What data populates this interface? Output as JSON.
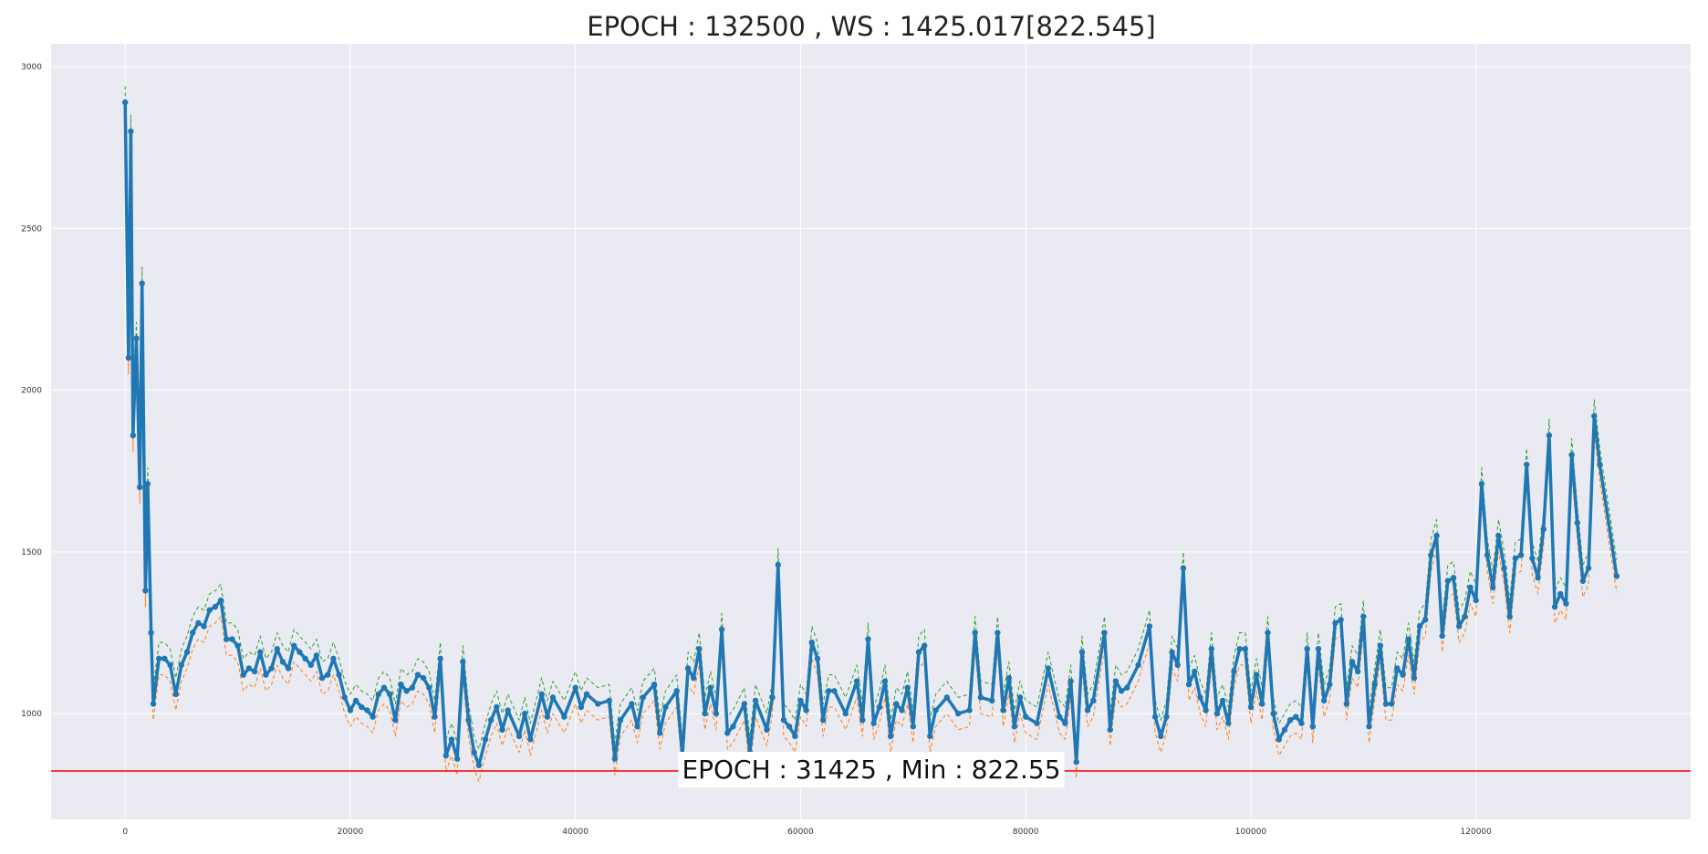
{
  "chart_data": {
    "type": "line",
    "title": "EPOCH : 132500 , WS : 1425.017[822.545]",
    "annotation": "EPOCH : 31425 , Min : 822.55",
    "hline": {
      "value": 822.55,
      "color": "#ff0000"
    },
    "xlim": [
      -6580,
      139070
    ],
    "ylim": [
      673,
      3071
    ],
    "xticks": [
      0,
      20000,
      40000,
      60000,
      80000,
      100000,
      120000
    ],
    "yticks": [
      1000,
      1500,
      2000,
      2500,
      3000
    ],
    "grid": true,
    "x": [
      0,
      300,
      500,
      700,
      1000,
      1300,
      1500,
      1800,
      2000,
      2300,
      2500,
      3000,
      3500,
      4000,
      4500,
      5000,
      5500,
      6000,
      6500,
      7000,
      7500,
      8000,
      8500,
      9000,
      9500,
      10000,
      10500,
      11000,
      11500,
      12000,
      12500,
      13000,
      13500,
      14000,
      14500,
      15000,
      15500,
      16000,
      16500,
      17000,
      17500,
      18000,
      18500,
      19000,
      19500,
      20000,
      20500,
      21000,
      21500,
      22000,
      22500,
      23000,
      23500,
      24000,
      24500,
      25000,
      25500,
      26000,
      26500,
      27000,
      27500,
      28000,
      28500,
      29000,
      29500,
      30000,
      30500,
      31000,
      31425,
      32000,
      32500,
      33000,
      33500,
      34000,
      35000,
      35500,
      36000,
      37000,
      37500,
      38000,
      39000,
      40000,
      40500,
      41000,
      42000,
      43000,
      43500,
      44000,
      45000,
      45500,
      46000,
      47000,
      47500,
      48000,
      49000,
      49500,
      50000,
      50500,
      51000,
      51500,
      52000,
      52500,
      53000,
      53500,
      54000,
      55000,
      55500,
      56000,
      57000,
      57500,
      58000,
      58500,
      59000,
      59500,
      60000,
      60500,
      61000,
      61500,
      62000,
      62500,
      63000,
      64000,
      65000,
      65500,
      66000,
      66500,
      67000,
      67500,
      68000,
      68500,
      69000,
      69500,
      70000,
      70500,
      71000,
      71500,
      72000,
      73000,
      74000,
      75000,
      75500,
      76000,
      77000,
      77500,
      78000,
      78500,
      79000,
      79500,
      80000,
      81000,
      82000,
      83000,
      83500,
      84000,
      84500,
      85000,
      85500,
      86000,
      87000,
      87500,
      88000,
      88500,
      89000,
      90000,
      91000,
      91500,
      92000,
      92500,
      93000,
      93500,
      94000,
      94500,
      95000,
      95500,
      96000,
      96500,
      97000,
      97500,
      98000,
      98500,
      99000,
      99500,
      100000,
      100500,
      101000,
      101500,
      102000,
      102500,
      103000,
      103500,
      104000,
      104500,
      105000,
      105500,
      106000,
      106500,
      107000,
      107500,
      108000,
      108500,
      109000,
      109500,
      110000,
      110500,
      111000,
      111500,
      112000,
      112500,
      113000,
      113500,
      114000,
      114500,
      115000,
      115500,
      116000,
      116500,
      117000,
      117500,
      118000,
      118500,
      119000,
      119500,
      120000,
      120500,
      121000,
      121500,
      122000,
      122500,
      123000,
      123500,
      124000,
      124500,
      125000,
      125500,
      126000,
      126500,
      127000,
      127500,
      128000,
      128500,
      129000,
      129500,
      130000,
      130500,
      131000,
      132500
    ],
    "series": [
      {
        "color": "#2ca02c",
        "linestyle": "dashed",
        "width": 1,
        "values": [
          2940,
          2150,
          2850,
          1910,
          2210,
          1750,
          2380,
          1430,
          1760,
          1300,
          1080,
          1220,
          1220,
          1200,
          1110,
          1200,
          1240,
          1300,
          1330,
          1320,
          1370,
          1380,
          1400,
          1280,
          1280,
          1260,
          1170,
          1190,
          1180,
          1240,
          1170,
          1190,
          1250,
          1210,
          1190,
          1260,
          1240,
          1220,
          1200,
          1230,
          1160,
          1170,
          1220,
          1170,
          1100,
          1060,
          1090,
          1070,
          1060,
          1040,
          1110,
          1130,
          1110,
          1030,
          1140,
          1120,
          1130,
          1170,
          1160,
          1130,
          1040,
          1220,
          920,
          970,
          910,
          1210,
          1030,
          930,
          890,
          970,
          1030,
          1070,
          1000,
          1060,
          980,
          1050,
          970,
          1110,
          1040,
          1100,
          1040,
          1130,
          1070,
          1110,
          1080,
          1090,
          910,
          1030,
          1080,
          1010,
          1100,
          1140,
          990,
          1070,
          1120,
          920,
          1190,
          1160,
          1250,
          1050,
          1130,
          1050,
          1310,
          990,
          1010,
          1080,
          930,
          1090,
          1000,
          1100,
          1510,
          1030,
          1010,
          980,
          1090,
          1060,
          1270,
          1220,
          1030,
          1120,
          1120,
          1050,
          1150,
          1030,
          1280,
          1020,
          1070,
          1150,
          980,
          1080,
          1060,
          1130,
          1010,
          1240,
          1260,
          980,
          1060,
          1100,
          1050,
          1060,
          1300,
          1100,
          1090,
          1300,
          1060,
          1160,
          1010,
          1100,
          1040,
          1020,
          1190,
          1040,
          1020,
          1150,
          900,
          1240,
          1060,
          1090,
          1300,
          1000,
          1150,
          1120,
          1130,
          1200,
          1320,
          1040,
          980,
          1040,
          1240,
          1200,
          1500,
          1140,
          1180,
          1100,
          1060,
          1250,
          1050,
          1090,
          1020,
          1180,
          1250,
          1250,
          1070,
          1170,
          1080,
          1300,
          1050,
          970,
          1000,
          1030,
          1040,
          1020,
          1250,
          1010,
          1250,
          1090,
          1140,
          1330,
          1340,
          1080,
          1210,
          1180,
          1350,
          1010,
          1140,
          1260,
          1080,
          1080,
          1190,
          1170,
          1280,
          1160,
          1320,
          1340,
          1540,
          1600,
          1290,
          1460,
          1470,
          1320,
          1350,
          1440,
          1400,
          1760,
          1540,
          1440,
          1600,
          1500,
          1350,
          1530,
          1540,
          1820,
          1530,
          1470,
          1620,
          1910,
          1380,
          1420,
          1390,
          1850,
          1640,
          1460,
          1500,
          1970,
          1820,
          1475
        ]
      },
      {
        "color": "#ff7f0e",
        "linestyle": "dashed",
        "width": 1,
        "values": [
          2840,
          2050,
          2750,
          1810,
          2110,
          1650,
          2280,
          1330,
          1660,
          1200,
          980,
          1120,
          1120,
          1100,
          1010,
          1100,
          1140,
          1200,
          1230,
          1220,
          1270,
          1280,
          1300,
          1180,
          1180,
          1160,
          1070,
          1090,
          1080,
          1140,
          1070,
          1090,
          1150,
          1110,
          1090,
          1160,
          1140,
          1120,
          1100,
          1130,
          1060,
          1070,
          1120,
          1070,
          1000,
          960,
          990,
          970,
          960,
          940,
          1010,
          1030,
          1010,
          930,
          1040,
          1020,
          1030,
          1070,
          1060,
          1030,
          940,
          1120,
          820,
          870,
          810,
          1110,
          930,
          830,
          790,
          870,
          930,
          970,
          900,
          960,
          880,
          950,
          870,
          1010,
          940,
          1000,
          940,
          1030,
          970,
          1010,
          980,
          990,
          810,
          930,
          980,
          910,
          1000,
          1040,
          890,
          970,
          1020,
          820,
          1090,
          1060,
          1150,
          950,
          1030,
          950,
          1210,
          890,
          910,
          980,
          830,
          990,
          900,
          1000,
          1410,
          930,
          910,
          880,
          990,
          960,
          1170,
          1120,
          930,
          1020,
          1020,
          950,
          1050,
          930,
          1180,
          920,
          970,
          1050,
          880,
          980,
          960,
          1030,
          910,
          1140,
          1160,
          880,
          960,
          1000,
          950,
          960,
          1200,
          1000,
          990,
          1200,
          960,
          1060,
          910,
          1000,
          940,
          920,
          1090,
          940,
          920,
          1050,
          800,
          1140,
          960,
          990,
          1200,
          900,
          1050,
          1020,
          1030,
          1100,
          1220,
          940,
          880,
          940,
          1140,
          1100,
          1400,
          1040,
          1080,
          1000,
          960,
          1150,
          950,
          990,
          920,
          1080,
          1150,
          1150,
          970,
          1070,
          980,
          1200,
          950,
          870,
          900,
          930,
          940,
          920,
          1150,
          910,
          1150,
          990,
          1040,
          1230,
          1240,
          980,
          1110,
          1080,
          1250,
          910,
          1040,
          1160,
          980,
          980,
          1090,
          1070,
          1180,
          1060,
          1220,
          1240,
          1440,
          1500,
          1190,
          1360,
          1370,
          1220,
          1250,
          1340,
          1300,
          1660,
          1440,
          1340,
          1500,
          1400,
          1250,
          1430,
          1440,
          1720,
          1430,
          1370,
          1520,
          1810,
          1280,
          1320,
          1290,
          1750,
          1540,
          1360,
          1400,
          1870,
          1720,
          1375
        ]
      },
      {
        "color": "#1f77b4",
        "linestyle": "solid",
        "width": 3.5,
        "marker": true,
        "values": [
          2890,
          2100,
          2800,
          1860,
          2160,
          1700,
          2330,
          1380,
          1710,
          1250,
          1030,
          1170,
          1170,
          1150,
          1060,
          1150,
          1190,
          1250,
          1280,
          1270,
          1320,
          1330,
          1350,
          1230,
          1230,
          1210,
          1120,
          1140,
          1130,
          1190,
          1120,
          1140,
          1200,
          1160,
          1140,
          1210,
          1190,
          1170,
          1150,
          1180,
          1110,
          1120,
          1170,
          1120,
          1050,
          1010,
          1040,
          1020,
          1010,
          990,
          1060,
          1080,
          1060,
          980,
          1090,
          1070,
          1080,
          1120,
          1110,
          1080,
          990,
          1170,
          870,
          920,
          860,
          1160,
          980,
          880,
          840,
          920,
          980,
          1020,
          950,
          1010,
          930,
          1000,
          920,
          1060,
          990,
          1050,
          990,
          1080,
          1020,
          1060,
          1030,
          1040,
          860,
          980,
          1030,
          960,
          1050,
          1090,
          940,
          1020,
          1070,
          870,
          1140,
          1110,
          1200,
          1000,
          1080,
          1000,
          1260,
          940,
          960,
          1030,
          880,
          1040,
          950,
          1050,
          1460,
          980,
          960,
          930,
          1040,
          1010,
          1220,
          1170,
          980,
          1070,
          1070,
          1000,
          1100,
          980,
          1230,
          970,
          1020,
          1100,
          930,
          1030,
          1010,
          1080,
          960,
          1190,
          1210,
          930,
          1010,
          1050,
          1000,
          1010,
          1250,
          1050,
          1040,
          1250,
          1010,
          1110,
          960,
          1050,
          990,
          970,
          1140,
          990,
          970,
          1100,
          850,
          1190,
          1010,
          1040,
          1250,
          950,
          1100,
          1070,
          1080,
          1150,
          1270,
          990,
          930,
          990,
          1190,
          1150,
          1450,
          1090,
          1130,
          1050,
          1010,
          1200,
          1000,
          1040,
          970,
          1130,
          1200,
          1200,
          1020,
          1120,
          1030,
          1250,
          1000,
          920,
          950,
          980,
          990,
          970,
          1200,
          960,
          1200,
          1040,
          1090,
          1280,
          1290,
          1030,
          1160,
          1130,
          1300,
          960,
          1090,
          1210,
          1030,
          1030,
          1140,
          1120,
          1230,
          1110,
          1270,
          1290,
          1490,
          1550,
          1240,
          1410,
          1420,
          1270,
          1300,
          1390,
          1350,
          1710,
          1490,
          1390,
          1550,
          1450,
          1300,
          1480,
          1490,
          1770,
          1480,
          1420,
          1570,
          1860,
          1330,
          1370,
          1340,
          1800,
          1590,
          1410,
          1450,
          1920,
          1770,
          1425.017
        ]
      }
    ]
  }
}
